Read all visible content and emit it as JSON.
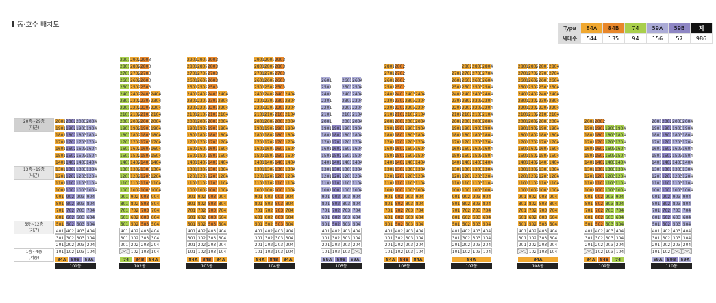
{
  "title": "동·호수 배치도",
  "colors": {
    "84A": "#f0a830",
    "84B": "#e8872a",
    "74": "#a9cf4c",
    "59A": "#ababd6",
    "59B": "#8e86c4",
    "gray": "#dcdcdc",
    "white": "#ffffff",
    "total": "#111111"
  },
  "summary": {
    "headers": [
      "Type",
      "84A",
      "84B",
      "74",
      "59A",
      "59B",
      "계"
    ],
    "rowLabel": "세대수",
    "values": [
      "544",
      "135",
      "94",
      "156",
      "57",
      "986"
    ]
  },
  "bands": [
    {
      "label": "20층~29층\n(다군)",
      "top": 20,
      "bottom": 29
    },
    {
      "label": "13층~19층\n(나군)",
      "top": 13,
      "bottom": 19
    },
    {
      "label": "5층~12층\n(가군)",
      "top": 5,
      "bottom": 12
    },
    {
      "label": "1층~4층\n(저층)",
      "top": 1,
      "bottom": 4
    }
  ],
  "buildings": [
    {
      "name": "101동",
      "top": 20,
      "cols": [
        {
          "t": "84A"
        },
        {
          "t": "59B"
        },
        {
          "t": "59A"
        },
        {
          "t": "59A"
        }
      ],
      "maxFloors": [
        20,
        20,
        20,
        20
      ],
      "missing": [],
      "typeRow": [
        "84A",
        "59B",
        "59A"
      ]
    },
    {
      "name": "102동",
      "top": 29,
      "cols": [
        {
          "t": "74"
        },
        {
          "t": "84A"
        },
        {
          "t": "84B"
        },
        {
          "t": "84A"
        }
      ],
      "maxFloors": [
        29,
        29,
        29,
        24
      ],
      "missing": [
        "101"
      ],
      "typeRow": [
        "74",
        "84B",
        "84A"
      ]
    },
    {
      "name": "103동",
      "top": 29,
      "cols": [
        {
          "t": "84A"
        },
        {
          "t": "84A"
        },
        {
          "t": "84B"
        },
        {
          "t": "84A"
        }
      ],
      "maxFloors": [
        29,
        29,
        29,
        24
      ],
      "missing": [],
      "typeRow": [
        "84A",
        "84B",
        "84A"
      ]
    },
    {
      "name": "104동",
      "top": 29,
      "cols": [
        {
          "t": "84A"
        },
        {
          "t": "84A"
        },
        {
          "t": "84B"
        },
        {
          "t": "84A"
        }
      ],
      "maxFloors": [
        29,
        29,
        29,
        24
      ],
      "missing": [],
      "typeRow": [
        "84A",
        "84B",
        "84A"
      ]
    },
    {
      "name": "105동",
      "top": 26,
      "cols": [
        {
          "t": "59A"
        },
        {
          "t": "59B"
        },
        {
          "t": "59A"
        },
        {
          "t": "59A"
        }
      ],
      "maxFloors": [
        26,
        19,
        26,
        26
      ],
      "missing": [
        "104"
      ],
      "typeRow": [
        "59A",
        "59B",
        "59A"
      ]
    },
    {
      "name": "106동",
      "top": 28,
      "cols": [
        {
          "t": "84A"
        },
        {
          "t": "84B"
        },
        {
          "t": "84A"
        },
        {
          "t": "84A"
        }
      ],
      "maxFloors": [
        28,
        28,
        24,
        24
      ],
      "missing": [],
      "typeRow": [
        "84A",
        "84B",
        "84A"
      ]
    },
    {
      "name": "107동",
      "top": 28,
      "cols": [
        {
          "t": "84A"
        },
        {
          "t": "84A"
        },
        {
          "t": "84A"
        },
        {
          "t": "84A"
        }
      ],
      "maxFloors": [
        27,
        28,
        28,
        28
      ],
      "missing": [],
      "typeRow": [
        "84A"
      ]
    },
    {
      "name": "108동",
      "top": 28,
      "cols": [
        {
          "t": "84A"
        },
        {
          "t": "84A"
        },
        {
          "t": "84A"
        },
        {
          "t": "84A"
        }
      ],
      "maxFloors": [
        28,
        28,
        28,
        28
      ],
      "missing": [
        "101"
      ],
      "typeRow": [
        "84A"
      ]
    },
    {
      "name": "109동",
      "top": 20,
      "cols": [
        {
          "t": "84A"
        },
        {
          "t": "84B"
        },
        {
          "t": "74"
        },
        {
          "t": "74"
        }
      ],
      "maxFloors": [
        20,
        20,
        19,
        19
      ],
      "missing": [
        "101"
      ],
      "typeRow": [
        "84A",
        "84B",
        "74"
      ]
    },
    {
      "name": "110동",
      "top": 20,
      "cols": [
        {
          "t": "59A"
        },
        {
          "t": "59B"
        },
        {
          "t": "59A"
        },
        {
          "t": "59A"
        }
      ],
      "maxFloors": [
        20,
        20,
        20,
        20
      ],
      "missing": [
        "103",
        "104"
      ],
      "typeRow": [
        "59A",
        "59B",
        "59A"
      ]
    }
  ]
}
